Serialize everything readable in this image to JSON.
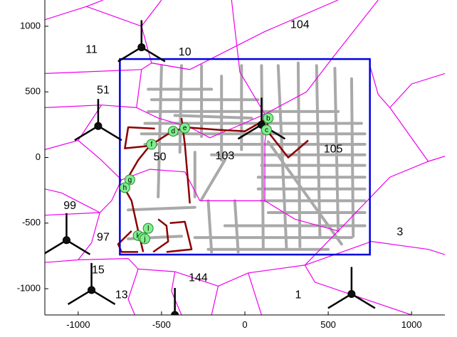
{
  "chart_data": {
    "type": "scatter",
    "title": "",
    "xlabel": "",
    "ylabel": "",
    "xlim": [
      -1200,
      1200
    ],
    "ylim": [
      -1200,
      1200
    ],
    "grid": false,
    "x_ticks": [
      -1000,
      -500,
      0,
      500,
      1000
    ],
    "x_tick_labels": [
      "-1000",
      "-500",
      "0",
      "500",
      "1000"
    ],
    "y_ticks": [
      1000,
      500,
      0,
      -500,
      -1000
    ],
    "y_tick_labels": [
      "1000",
      "500",
      "0",
      "-500",
      "-1000"
    ],
    "colors": {
      "axis": "#000000",
      "voronoi": "#ee00ee",
      "streets": "#a9a9a9",
      "route": "#8b0000",
      "boundary_box": "#0000dd",
      "marker_fill": "#80ee90",
      "antenna": "#000000"
    },
    "boundary_box": {
      "x": [
        -750,
        750
      ],
      "y": [
        -740,
        750
      ]
    },
    "region_labels": [
      {
        "text": "104",
        "x": 330,
        "y": 1010
      },
      {
        "text": "11",
        "x": -920,
        "y": 820
      },
      {
        "text": "10",
        "x": -360,
        "y": 800
      },
      {
        "text": "51",
        "x": -850,
        "y": 510
      },
      {
        "text": "50",
        "x": -510,
        "y": 0
      },
      {
        "text": "103",
        "x": -120,
        "y": 10
      },
      {
        "text": "105",
        "x": 530,
        "y": 60
      },
      {
        "text": "99",
        "x": -1050,
        "y": -370
      },
      {
        "text": "97",
        "x": -850,
        "y": -610
      },
      {
        "text": "3",
        "x": 930,
        "y": -570
      },
      {
        "text": "15",
        "x": -880,
        "y": -860
      },
      {
        "text": "144",
        "x": -280,
        "y": -920
      },
      {
        "text": "13",
        "x": -740,
        "y": -1050
      },
      {
        "text": "1",
        "x": 320,
        "y": -1050
      }
    ],
    "antennas": [
      {
        "x": -620,
        "y": 840
      },
      {
        "x": -880,
        "y": 240
      },
      {
        "x": 100,
        "y": 250
      },
      {
        "x": -1070,
        "y": -630
      },
      {
        "x": -920,
        "y": -1010
      },
      {
        "x": -420,
        "y": -1200
      },
      {
        "x": 640,
        "y": -1040
      }
    ],
    "markers": [
      {
        "label": "b",
        "x": 140,
        "y": 300
      },
      {
        "label": "c",
        "x": 130,
        "y": 210
      },
      {
        "label": "d",
        "x": -430,
        "y": 200
      },
      {
        "label": "e",
        "x": -360,
        "y": 225
      },
      {
        "label": "f",
        "x": -560,
        "y": 100
      },
      {
        "label": "g",
        "x": -690,
        "y": -170
      },
      {
        "label": "h",
        "x": -720,
        "y": -230
      },
      {
        "label": "l",
        "x": -580,
        "y": -540
      },
      {
        "label": "k",
        "x": -640,
        "y": -595
      },
      {
        "label": "i",
        "x": -610,
        "y": -610
      },
      {
        "label": "j",
        "x": -600,
        "y": -620
      }
    ],
    "route_path": [
      [
        -610,
        -720
      ],
      [
        -640,
        -560
      ],
      [
        -680,
        -330
      ],
      [
        -720,
        -240
      ],
      [
        -700,
        -150
      ],
      [
        -640,
        -20
      ],
      [
        -570,
        90
      ],
      [
        -460,
        180
      ],
      [
        -360,
        230
      ],
      [
        -150,
        210
      ],
      [
        0,
        200
      ],
      [
        140,
        300
      ],
      [
        130,
        210
      ],
      [
        260,
        0
      ],
      [
        380,
        130
      ]
    ],
    "route_extra": [
      [
        [
          -520,
          -470
        ],
        [
          -470,
          -520
        ],
        [
          -460,
          -640
        ],
        [
          -550,
          -720
        ]
      ],
      [
        [
          -450,
          -500
        ],
        [
          -360,
          -490
        ],
        [
          -320,
          -700
        ],
        [
          -470,
          -720
        ]
      ],
      [
        [
          -680,
          -560
        ],
        [
          -760,
          -660
        ],
        [
          -740,
          -720
        ],
        [
          -640,
          -720
        ]
      ],
      [
        [
          -540,
          220
        ],
        [
          -700,
          230
        ],
        [
          -720,
          70
        ],
        [
          -560,
          90
        ]
      ],
      [
        [
          -380,
          300
        ],
        [
          -360,
          100
        ],
        [
          -330,
          -350
        ]
      ]
    ],
    "voronoi_edges": [
      [
        [
          -1200,
          1050
        ],
        [
          -950,
          1150
        ],
        [
          -850,
          1200
        ]
      ],
      [
        [
          -950,
          1150
        ],
        [
          -620,
          1000
        ],
        [
          -500,
          1200
        ]
      ],
      [
        [
          -620,
          1000
        ],
        [
          -560,
          720
        ],
        [
          -330,
          670
        ]
      ],
      [
        [
          -330,
          670
        ],
        [
          120,
          960
        ],
        [
          560,
          1200
        ]
      ],
      [
        [
          -330,
          670
        ],
        [
          -560,
          720
        ],
        [
          -620,
          670
        ]
      ],
      [
        [
          -620,
          670
        ],
        [
          -1200,
          640
        ]
      ],
      [
        [
          -620,
          670
        ],
        [
          -650,
          380
        ],
        [
          -520,
          300
        ],
        [
          -330,
          230
        ]
      ],
      [
        [
          -330,
          230
        ],
        [
          -210,
          150
        ],
        [
          -60,
          230
        ],
        [
          120,
          330
        ]
      ],
      [
        [
          120,
          330
        ],
        [
          370,
          500
        ],
        [
          520,
          750
        ],
        [
          800,
          1200
        ]
      ],
      [
        [
          120,
          330
        ],
        [
          -30,
          650
        ],
        [
          -80,
          1200
        ]
      ],
      [
        [
          -650,
          380
        ],
        [
          -860,
          400
        ],
        [
          -1200,
          380
        ]
      ],
      [
        [
          -860,
          400
        ],
        [
          -1000,
          130
        ],
        [
          -1200,
          60
        ]
      ],
      [
        [
          -1000,
          130
        ],
        [
          -870,
          -10
        ],
        [
          -740,
          -170
        ]
      ],
      [
        [
          -740,
          -170
        ],
        [
          -570,
          -90
        ],
        [
          -360,
          -110
        ]
      ],
      [
        [
          -360,
          -110
        ],
        [
          -270,
          -330
        ],
        [
          120,
          -330
        ]
      ],
      [
        [
          120,
          -330
        ],
        [
          120,
          120
        ],
        [
          130,
          210
        ]
      ],
      [
        [
          120,
          -330
        ],
        [
          300,
          -470
        ],
        [
          560,
          -560
        ]
      ],
      [
        [
          560,
          -560
        ],
        [
          870,
          -150
        ],
        [
          1100,
          -30
        ],
        [
          1200,
          10
        ]
      ],
      [
        [
          870,
          380
        ],
        [
          1100,
          -30
        ]
      ],
      [
        [
          870,
          380
        ],
        [
          800,
          480
        ],
        [
          750,
          700
        ]
      ],
      [
        [
          1200,
          640
        ],
        [
          1000,
          560
        ],
        [
          870,
          380
        ]
      ],
      [
        [
          -740,
          -170
        ],
        [
          -800,
          -330
        ],
        [
          -870,
          -420
        ]
      ],
      [
        [
          -870,
          -420
        ],
        [
          -1100,
          -270
        ],
        [
          -1200,
          -240
        ]
      ],
      [
        [
          -870,
          -420
        ],
        [
          -920,
          -650
        ],
        [
          -1000,
          -780
        ]
      ],
      [
        [
          -1000,
          -780
        ],
        [
          -1200,
          -800
        ]
      ],
      [
        [
          -1000,
          -780
        ],
        [
          -700,
          -770
        ],
        [
          -640,
          -850
        ]
      ],
      [
        [
          -640,
          -850
        ],
        [
          -700,
          -1080
        ],
        [
          -660,
          -1200
        ]
      ],
      [
        [
          -640,
          -850
        ],
        [
          -420,
          -870
        ],
        [
          -160,
          -980
        ]
      ],
      [
        [
          -160,
          -980
        ],
        [
          -200,
          -1200
        ]
      ],
      [
        [
          -160,
          -980
        ],
        [
          20,
          -880
        ],
        [
          360,
          -820
        ]
      ],
      [
        [
          360,
          -820
        ],
        [
          760,
          -640
        ],
        [
          1100,
          -700
        ],
        [
          1200,
          -740
        ]
      ],
      [
        [
          560,
          -560
        ],
        [
          360,
          -820
        ]
      ],
      [
        [
          -420,
          -870
        ],
        [
          -440,
          -1020
        ],
        [
          -380,
          -1200
        ]
      ],
      [
        [
          360,
          -820
        ],
        [
          420,
          -950
        ],
        [
          1000,
          -1200
        ]
      ],
      [
        [
          -870,
          -420
        ],
        [
          -1200,
          -440
        ]
      ],
      [
        [
          20,
          -880
        ],
        [
          100,
          -1200
        ]
      ]
    ],
    "streets": [
      [
        [
          -580,
          520
        ],
        [
          -200,
          520
        ]
      ],
      [
        [
          -560,
          440
        ],
        [
          80,
          440
        ]
      ],
      [
        [
          -580,
          350
        ],
        [
          560,
          350
        ]
      ],
      [
        [
          -600,
          260
        ],
        [
          700,
          260
        ]
      ],
      [
        [
          -620,
          180
        ],
        [
          720,
          180
        ]
      ],
      [
        [
          -600,
          100
        ],
        [
          720,
          100
        ]
      ],
      [
        [
          -200,
          20
        ],
        [
          720,
          20
        ]
      ],
      [
        [
          100,
          -60
        ],
        [
          720,
          -60
        ]
      ],
      [
        [
          80,
          -150
        ],
        [
          720,
          -150
        ]
      ],
      [
        [
          80,
          -240
        ],
        [
          720,
          -240
        ]
      ],
      [
        [
          100,
          -330
        ],
        [
          720,
          -330
        ]
      ],
      [
        [
          140,
          -420
        ],
        [
          720,
          -420
        ]
      ],
      [
        [
          -120,
          -520
        ],
        [
          720,
          -520
        ]
      ],
      [
        [
          -300,
          -610
        ],
        [
          640,
          -610
        ]
      ],
      [
        [
          -220,
          -700
        ],
        [
          500,
          -700
        ]
      ],
      [
        [
          -500,
          700
        ],
        [
          -520,
          -300
        ]
      ],
      [
        [
          -380,
          700
        ],
        [
          -390,
          40
        ]
      ],
      [
        [
          -260,
          700
        ],
        [
          -260,
          160
        ]
      ],
      [
        [
          -140,
          620
        ],
        [
          -140,
          -20
        ]
      ],
      [
        [
          -20,
          700
        ],
        [
          -20,
          60
        ]
      ],
      [
        [
          100,
          700
        ],
        [
          110,
          -690
        ]
      ],
      [
        [
          200,
          700
        ],
        [
          250,
          -700
        ]
      ],
      [
        [
          320,
          720
        ],
        [
          330,
          -680
        ]
      ],
      [
        [
          430,
          700
        ],
        [
          450,
          -600
        ]
      ],
      [
        [
          540,
          680
        ],
        [
          560,
          -560
        ]
      ],
      [
        [
          640,
          600
        ],
        [
          650,
          -600
        ]
      ],
      [
        [
          -60,
          -330
        ],
        [
          -40,
          -720
        ]
      ],
      [
        [
          -220,
          -330
        ],
        [
          -200,
          -720
        ]
      ],
      [
        [
          -300,
          40
        ],
        [
          -300,
          -300
        ]
      ],
      [
        [
          -120,
          -20
        ],
        [
          -260,
          -320
        ]
      ],
      [
        [
          140,
          120
        ],
        [
          580,
          -660
        ]
      ],
      [
        [
          -420,
          320
        ],
        [
          40,
          300
        ]
      ],
      [
        [
          -700,
          -400
        ],
        [
          -300,
          -380
        ]
      ],
      [
        [
          -700,
          -620
        ],
        [
          -380,
          -600
        ]
      ]
    ],
    "axes": [
      {
        "orientation": "bottom",
        "tick_labels": [
          "-1000",
          "-500",
          "0",
          "500",
          "1000"
        ]
      },
      {
        "orientation": "left",
        "tick_labels": [
          "1000",
          "500",
          "0",
          "-500",
          "-1000"
        ]
      }
    ]
  }
}
